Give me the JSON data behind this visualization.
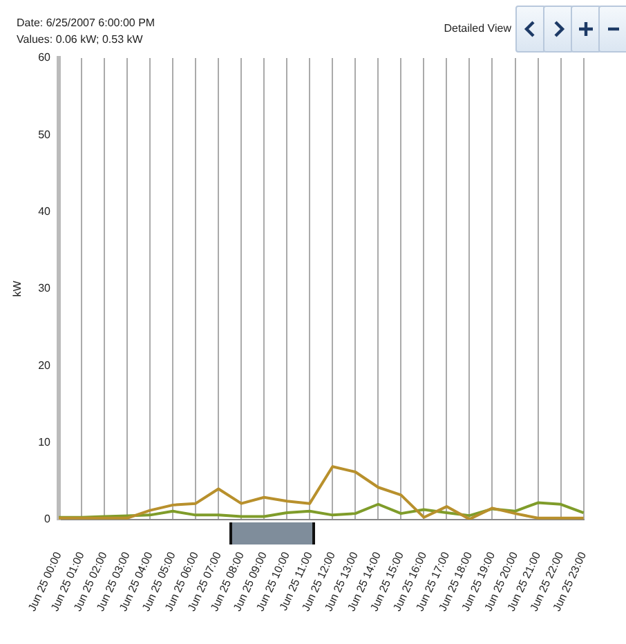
{
  "chart_data": {
    "type": "line",
    "ylabel": "kW",
    "annotations": [
      "Date: 6/25/2007 6:00:00 PM",
      "Values: 0.06 kW; 0.53 kW",
      "Detailed View"
    ],
    "categories": [
      "Jun 25 00:00",
      "Jun 25 01:00",
      "Jun 25 02:00",
      "Jun 25 03:00",
      "Jun 25 04:00",
      "Jun 25 05:00",
      "Jun 25 06:00",
      "Jun 25 07:00",
      "Jun 25 08:00",
      "Jun 25 09:00",
      "Jun 25 10:00",
      "Jun 25 11:00",
      "Jun 25 12:00",
      "Jun 25 13:00",
      "Jun 25 14:00",
      "Jun 25 15:00",
      "Jun 25 16:00",
      "Jun 25 17:00",
      "Jun 25 18:00",
      "Jun 25 19:00",
      "Jun 25 20:00",
      "Jun 25 21:00",
      "Jun 25 22:00",
      "Jun 25 23:00"
    ],
    "series": [
      {
        "color": "#b8902c",
        "values": [
          0.2,
          0.2,
          0.2,
          0.2,
          1.2,
          1.9,
          2.1,
          4.0,
          2.1,
          2.9,
          2.4,
          2.1,
          6.9,
          6.2,
          4.2,
          3.2,
          0.3,
          1.7,
          0.06,
          1.5,
          0.8,
          0.2,
          0.2,
          0.2
        ]
      },
      {
        "color": "#7f9c2a",
        "values": [
          0.3,
          0.3,
          0.4,
          0.5,
          0.6,
          1.1,
          0.6,
          0.6,
          0.4,
          0.4,
          0.9,
          1.1,
          0.6,
          0.8,
          2.0,
          0.8,
          1.3,
          0.9,
          0.53,
          1.4,
          1.1,
          2.2,
          2.0,
          0.9
        ]
      }
    ],
    "ylim": [
      0,
      60
    ],
    "yticks": [
      0,
      10,
      20,
      30,
      40,
      50,
      60
    ],
    "grid": "x",
    "legend": false,
    "marker": "none",
    "line_style": "solid"
  }
}
